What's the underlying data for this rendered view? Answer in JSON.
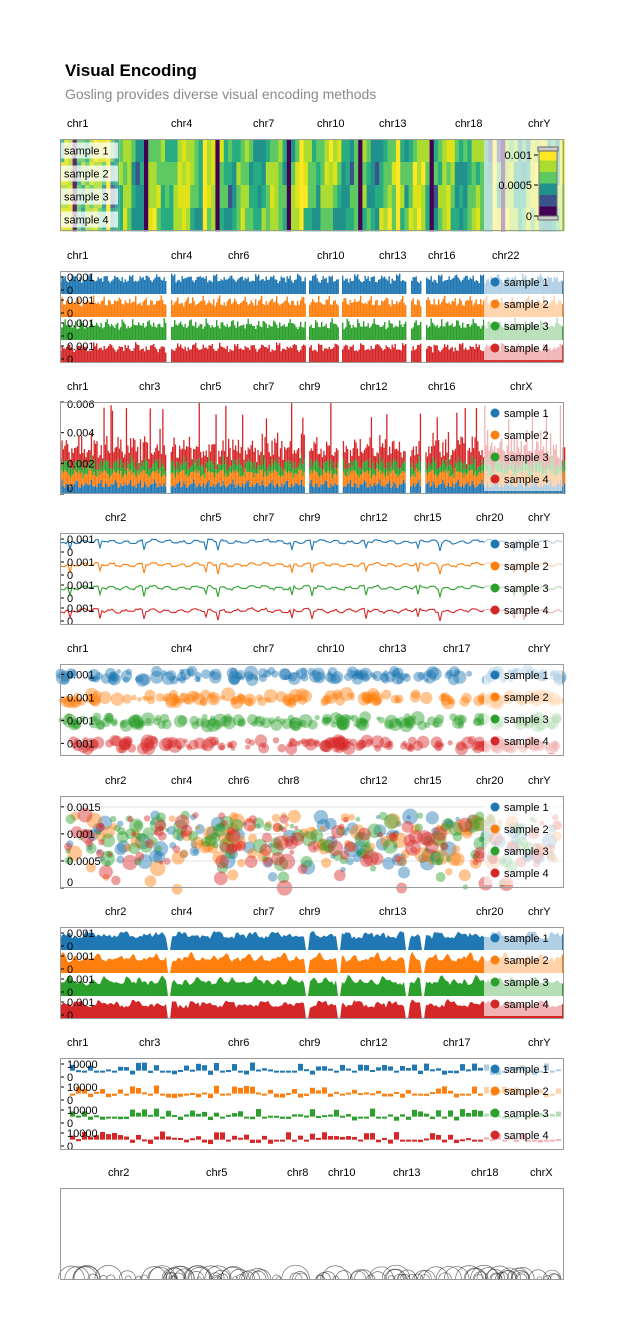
{
  "header": {
    "title": "Visual Encoding",
    "subtitle": "Gosling provides diverse visual encoding methods"
  },
  "colors": {
    "sample 1": "#1f77b4",
    "sample 2": "#ff7f0e",
    "sample 3": "#2ca02c",
    "sample 4": "#d62728"
  },
  "chart_data": [
    {
      "type": "heatmap",
      "chromosomes": [
        "chr1",
        "chr4",
        "chr7",
        "chr10",
        "chr13",
        "chr18",
        "chrY"
      ],
      "rows": [
        "sample 1",
        "sample 2",
        "sample 3",
        "sample 4"
      ],
      "color_scale": "viridis",
      "legend_ticks": [
        "0.001",
        "0.0005",
        "0"
      ],
      "domain": [
        0,
        0.0012
      ]
    },
    {
      "type": "bar",
      "chromosomes": [
        "chr1",
        "chr4",
        "chr6",
        "chr10",
        "chr13",
        "chr16",
        "chr22"
      ],
      "layout": "rows",
      "rows": [
        "sample 1",
        "sample 2",
        "sample 3",
        "sample 4"
      ],
      "row_axis_ticks": [
        "0.001",
        "0"
      ],
      "legend": [
        "sample 1",
        "sample 2",
        "sample 3",
        "sample 4"
      ]
    },
    {
      "type": "bar",
      "chromosomes": [
        "chr1",
        "chr3",
        "chr5",
        "chr7",
        "chr9",
        "chr12",
        "chr16",
        "chrX"
      ],
      "layout": "stacked",
      "y_axis_ticks": [
        "0.006",
        "0.004",
        "0.002",
        "0"
      ],
      "ylim": [
        0,
        0.006
      ],
      "legend": [
        "sample 1",
        "sample 2",
        "sample 3",
        "sample 4"
      ]
    },
    {
      "type": "line",
      "chromosomes": [
        "chr2",
        "chr5",
        "chr7",
        "chr9",
        "chr12",
        "chr15",
        "chr20",
        "chrY"
      ],
      "layout": "rows",
      "rows": [
        "sample 1",
        "sample 2",
        "sample 3",
        "sample 4"
      ],
      "row_axis_ticks": [
        "0.001",
        "0"
      ],
      "legend": [
        "sample 1",
        "sample 2",
        "sample 3",
        "sample 4"
      ]
    },
    {
      "type": "scatter",
      "chromosomes": [
        "chr1",
        "chr4",
        "chr7",
        "chr10",
        "chr13",
        "chr17",
        "chrY"
      ],
      "layout": "rows",
      "rows": [
        "sample 1",
        "sample 2",
        "sample 3",
        "sample 4"
      ],
      "row_axis_ticks": [
        "0.001"
      ],
      "legend": [
        "sample 1",
        "sample 2",
        "sample 3",
        "sample 4"
      ]
    },
    {
      "type": "scatter",
      "chromosomes": [
        "chr2",
        "chr4",
        "chr6",
        "chr8",
        "chr12",
        "chr15",
        "chr20",
        "chrY"
      ],
      "layout": "overlaid",
      "y_axis_ticks": [
        "0.0015",
        "0.001",
        "0.0005",
        "0"
      ],
      "ylim": [
        0,
        0.0017
      ],
      "legend": [
        "sample 1",
        "sample 2",
        "sample 3",
        "sample 4"
      ]
    },
    {
      "type": "area",
      "chromosomes": [
        "chr2",
        "chr4",
        "chr7",
        "chr9",
        "chr13",
        "chr20",
        "chrY"
      ],
      "layout": "rows",
      "rows": [
        "sample 1",
        "sample 2",
        "sample 3",
        "sample 4"
      ],
      "row_axis_ticks": [
        "0.001",
        "0"
      ],
      "legend": [
        "sample 1",
        "sample 2",
        "sample 3",
        "sample 4"
      ]
    },
    {
      "type": "bar",
      "chromosomes": [
        "chr1",
        "chr3",
        "chr6",
        "chr9",
        "chr12",
        "chr17",
        "chrY"
      ],
      "layout": "rows-diverging",
      "rows": [
        "sample 1",
        "sample 2",
        "sample 3",
        "sample 4"
      ],
      "row_axis_ticks": [
        "10000",
        "0"
      ],
      "legend": [
        "sample 1",
        "sample 2",
        "sample 3",
        "sample 4"
      ]
    },
    {
      "type": "arc",
      "chromosomes": [
        "chr2",
        "chr5",
        "chr8",
        "chr10",
        "chr13",
        "chr18",
        "chrX"
      ]
    }
  ]
}
